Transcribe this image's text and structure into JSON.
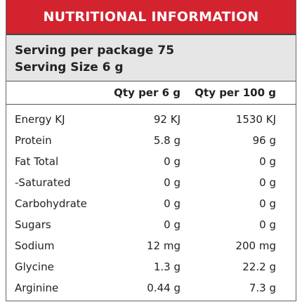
{
  "header": {
    "title": "NUTRITIONAL INFORMATION"
  },
  "serving": {
    "lines": [
      "Serving per package 75",
      "Serving Size 6 g"
    ]
  },
  "table": {
    "columns": [
      "",
      "Qty per 6 g",
      "Qty per 100 g"
    ],
    "rows": [
      [
        "Energy KJ",
        "92 KJ",
        "1530 KJ"
      ],
      [
        "Protein",
        "5.8 g",
        "96 g"
      ],
      [
        "Fat Total",
        "0 g",
        "0 g"
      ],
      [
        "-Saturated",
        "0 g",
        "0 g"
      ],
      [
        "Carbohydrate",
        "0 g",
        "0 g"
      ],
      [
        "Sugars",
        "0 g",
        "0 g"
      ],
      [
        "Sodium",
        "12 mg",
        "200 mg"
      ],
      [
        "Glycine",
        "1.3 g",
        "22.2 g"
      ],
      [
        "Arginine",
        "0.44 g",
        "7.3 g"
      ]
    ]
  }
}
